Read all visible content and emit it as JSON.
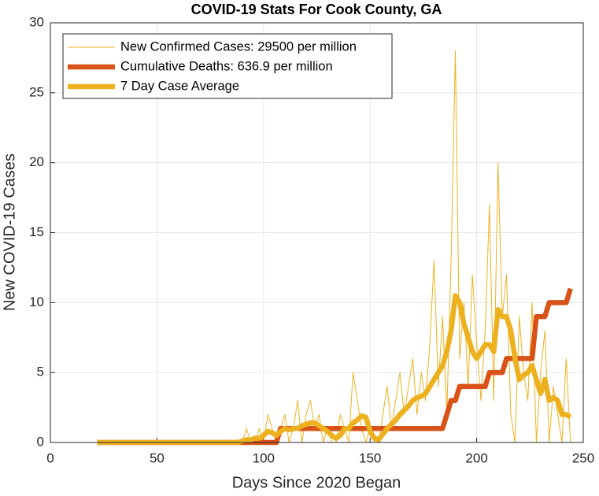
{
  "chart_data": {
    "type": "line",
    "title": "COVID-19 Stats For Cook County, GA",
    "xlabel": "Days Since 2020 Began",
    "ylabel": "New COVID-19 Cases",
    "x": [
      22,
      24,
      26,
      28,
      30,
      32,
      34,
      36,
      38,
      40,
      42,
      44,
      46,
      48,
      50,
      52,
      54,
      56,
      58,
      60,
      62,
      64,
      66,
      68,
      70,
      72,
      74,
      76,
      78,
      80,
      82,
      84,
      86,
      88,
      90,
      92,
      94,
      96,
      98,
      100,
      102,
      104,
      106,
      108,
      110,
      112,
      114,
      116,
      118,
      120,
      122,
      124,
      126,
      128,
      130,
      132,
      134,
      136,
      138,
      140,
      142,
      144,
      146,
      148,
      150,
      152,
      154,
      156,
      158,
      160,
      162,
      164,
      166,
      168,
      170,
      172,
      174,
      176,
      178,
      180,
      182,
      184,
      186,
      188,
      190,
      192,
      194,
      196,
      198,
      200,
      202,
      204,
      206,
      208,
      210,
      212,
      214,
      216,
      218,
      220,
      222,
      224,
      226,
      228,
      230,
      232,
      234,
      236,
      238,
      240,
      242,
      244
    ],
    "series": [
      {
        "name": "New Confirmed Cases: 29500 per million",
        "color": "#edb120",
        "values": [
          0,
          0,
          0,
          0,
          0,
          0,
          0,
          0,
          0,
          0,
          0,
          0,
          0,
          0,
          0,
          0,
          0,
          0,
          0,
          0,
          0,
          0,
          0,
          0,
          0,
          0,
          0,
          0,
          0,
          0,
          0,
          0,
          0,
          0,
          0,
          1,
          0,
          0,
          1,
          0,
          2,
          1,
          0,
          1,
          2,
          0,
          1,
          3,
          0,
          2,
          3,
          1,
          2,
          0,
          1,
          0,
          0,
          2,
          1,
          0,
          5,
          3,
          1,
          0,
          1,
          0,
          0,
          2,
          4,
          1,
          3,
          5,
          2,
          4,
          6,
          2,
          5,
          3,
          7,
          13,
          4,
          9,
          2,
          13,
          28,
          6,
          10,
          4,
          12,
          7,
          3,
          8,
          17,
          3,
          20,
          9,
          12,
          2,
          0,
          9,
          5,
          3,
          10,
          0,
          5,
          8,
          0,
          4,
          2,
          0,
          6,
          0
        ]
      },
      {
        "name": "Cumulative Deaths: 636.9 per million",
        "color": "#d95319",
        "values": [
          0,
          0,
          0,
          0,
          0,
          0,
          0,
          0,
          0,
          0,
          0,
          0,
          0,
          0,
          0,
          0,
          0,
          0,
          0,
          0,
          0,
          0,
          0,
          0,
          0,
          0,
          0,
          0,
          0,
          0,
          0,
          0,
          0,
          0,
          0,
          0,
          0,
          0,
          0,
          0,
          0,
          0,
          0,
          1,
          1,
          1,
          1,
          1,
          1,
          1,
          1,
          1,
          1,
          1,
          1,
          1,
          1,
          1,
          1,
          1,
          1,
          1,
          1,
          1,
          1,
          1,
          1,
          1,
          1,
          1,
          1,
          1,
          1,
          1,
          1,
          1,
          1,
          1,
          1,
          1,
          1,
          1,
          2,
          3,
          3,
          4,
          4,
          4,
          4,
          4,
          4,
          4,
          5,
          5,
          5,
          5,
          6,
          6,
          6,
          6,
          6,
          6,
          6,
          9,
          9,
          9,
          10,
          10,
          10,
          10,
          10,
          11
        ]
      },
      {
        "name": "7 Day Case Average",
        "color": "#edb120",
        "values": [
          0,
          0,
          0,
          0,
          0,
          0,
          0,
          0,
          0,
          0,
          0,
          0,
          0,
          0,
          0,
          0,
          0,
          0,
          0,
          0,
          0,
          0,
          0,
          0,
          0,
          0,
          0,
          0,
          0,
          0,
          0,
          0,
          0,
          0,
          0.1,
          0.2,
          0.2,
          0.3,
          0.3,
          0.5,
          0.8,
          0.7,
          0.5,
          0.8,
          1,
          0.9,
          1,
          1,
          1.2,
          1.3,
          1.4,
          1.4,
          1.2,
          1,
          0.8,
          0.5,
          0.3,
          0.5,
          1,
          1,
          1.4,
          1.6,
          1.9,
          1.8,
          0.8,
          0.3,
          0.2,
          0.6,
          1,
          1.3,
          1.6,
          2,
          2.3,
          2.6,
          3,
          3.2,
          3.3,
          3.5,
          4,
          4.5,
          5,
          5.5,
          6.5,
          8,
          10.5,
          10,
          8.5,
          7.5,
          6.5,
          6,
          6.5,
          7,
          7,
          6.5,
          9.5,
          9,
          9,
          8,
          6,
          4.5,
          4.8,
          5,
          5.5,
          4.5,
          3.5,
          4.5,
          3,
          3.2,
          3,
          2,
          2,
          1.8
        ]
      }
    ],
    "xlim": [
      0,
      250
    ],
    "xticks": [
      0,
      50,
      100,
      150,
      200,
      250
    ],
    "ylim": [
      0,
      30
    ],
    "yticks": [
      0,
      5,
      10,
      15,
      20,
      25,
      30
    ],
    "grid": true,
    "legend": "northwest"
  }
}
